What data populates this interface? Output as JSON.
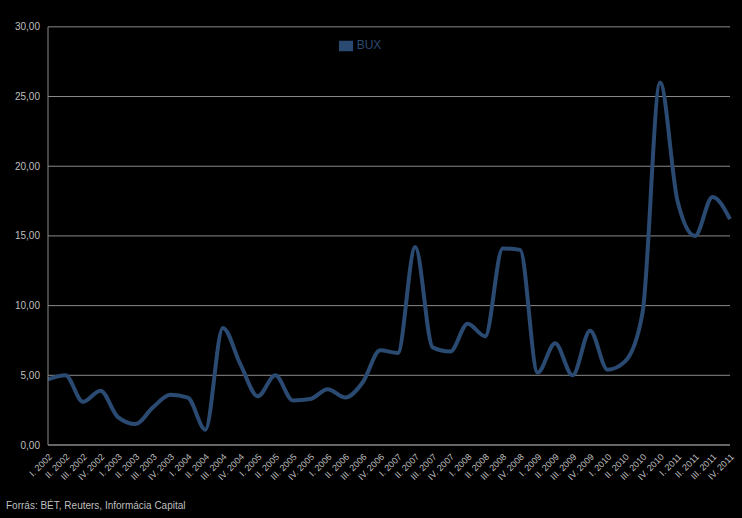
{
  "chart_data": {
    "type": "line",
    "source": "Forrás: BÉT, Reuters, Informácia Capital",
    "categories": [
      "I. 2002",
      "II. 2002",
      "III. 2002",
      "IV. 2002",
      "I. 2003",
      "II. 2003",
      "III. 2003",
      "IV. 2003",
      "I. 2004",
      "II. 2004",
      "III. 2004",
      "IV. 2004",
      "I. 2005",
      "II. 2005",
      "III. 2005",
      "IV. 2005",
      "I. 2006",
      "II. 2006",
      "III. 2006",
      "IV. 2006",
      "I. 2007",
      "II. 2007",
      "III. 2007",
      "IV. 2007",
      "I. 2008",
      "II. 2008",
      "III. 2008",
      "IV. 2008",
      "I. 2009",
      "II. 2009",
      "III. 2009",
      "IV. 2009",
      "I. 2010",
      "II. 2010",
      "III. 2010",
      "IV. 2010",
      "I. 2011",
      "II. 2011",
      "III. 2011",
      "IV. 2011"
    ],
    "series": [
      {
        "name": "BUX",
        "color": "#2b4a72",
        "values": [
          4.7,
          5.0,
          3.1,
          3.9,
          2.0,
          1.5,
          2.7,
          3.6,
          3.4,
          1.1,
          8.4,
          5.8,
          3.5,
          5.0,
          3.2,
          3.3,
          4.0,
          3.4,
          4.5,
          6.8,
          6.6,
          14.2,
          7.0,
          6.7,
          8.7,
          7.8,
          14.1,
          14.0,
          5.2,
          7.3,
          5.0,
          8.2,
          5.4,
          6.0,
          9.5,
          26.0,
          17.5,
          15.0,
          17.8,
          16.2
        ]
      }
    ],
    "ylim": [
      0,
      30
    ],
    "yticks": [
      {
        "value": 0,
        "label": "0,00"
      },
      {
        "value": 5,
        "label": "5,00"
      },
      {
        "value": 10,
        "label": "10,00"
      },
      {
        "value": 15,
        "label": "15,00"
      },
      {
        "value": 20,
        "label": "20,00"
      },
      {
        "value": 25,
        "label": "25,00"
      },
      {
        "value": 30,
        "label": "30,00"
      }
    ],
    "grid": true,
    "legend": "top"
  }
}
